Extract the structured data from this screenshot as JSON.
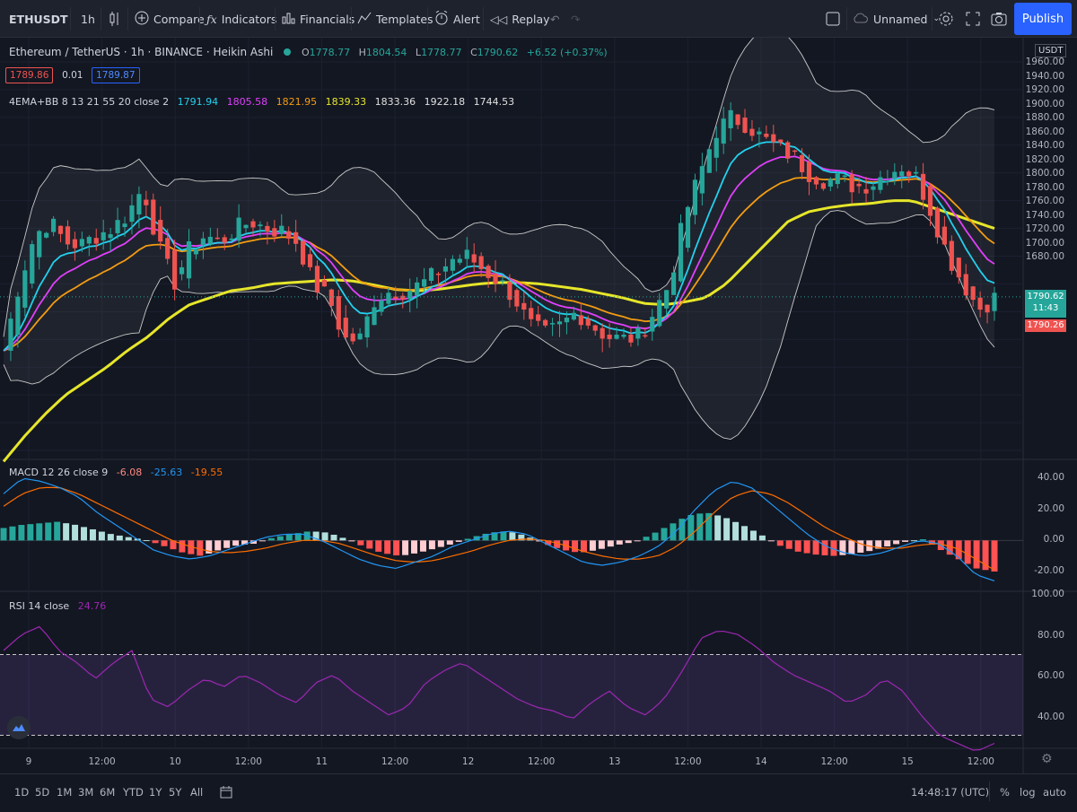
{
  "toolbar": {
    "symbol": "ETHUSDT",
    "interval": "1h",
    "compare": "Compare",
    "indicators": "Indicators",
    "financials": "Financials",
    "templates": "Templates",
    "alert": "Alert",
    "replay": "Replay",
    "layout_name": "Unnamed",
    "publish": "Publish"
  },
  "legend": {
    "title": "Ethereum / TetherUS · 1h · BINANCE · Heikin Ashi",
    "o_label": "O",
    "o": "1778.77",
    "h_label": "H",
    "h": "1804.54",
    "l_label": "L",
    "l": "1778.77",
    "c_label": "C",
    "c": "1790.62",
    "change": "+6.52 (+0.37%)",
    "sell_price": "1789.86",
    "spread": "0.01",
    "buy_price": "1789.87",
    "indicator_name": "4EMA+BB 8 13 21 55 20 close 2",
    "ema8": "1791.94",
    "ema13": "1805.58",
    "ema21": "1821.95",
    "ema55": "1839.33",
    "bb_mid": "1833.36",
    "bb_upper": "1922.18",
    "bb_lower": "1744.53"
  },
  "price_axis": {
    "currency": "USDT",
    "ticks": [
      "1960.00",
      "1940.00",
      "1920.00",
      "1900.00",
      "1880.00",
      "1860.00",
      "1840.00",
      "1820.00",
      "1800.00",
      "1780.00",
      "1760.00",
      "1740.00",
      "1720.00",
      "1700.00",
      "1680.00"
    ],
    "last_price": "1790.62",
    "countdown": "11:43",
    "bid_price": "1790.26"
  },
  "macd": {
    "name": "MACD 12 26 close 9",
    "hist": "-6.08",
    "macd": "-25.63",
    "signal": "-19.55",
    "ticks": [
      "40.00",
      "20.00",
      "0.00",
      "-20.00"
    ]
  },
  "rsi": {
    "name": "RSI 14 close",
    "value": "24.76",
    "ticks": [
      "100.00",
      "80.00",
      "60.00",
      "40.00"
    ]
  },
  "time_axis": [
    "9",
    "12:00",
    "10",
    "12:00",
    "11",
    "12:00",
    "12",
    "12:00",
    "13",
    "12:00",
    "14",
    "12:00",
    "15",
    "12:00"
  ],
  "ranges": [
    "1D",
    "5D",
    "1M",
    "3M",
    "6M",
    "YTD",
    "1Y",
    "5Y",
    "All"
  ],
  "bottom": {
    "clock": "14:48:17 (UTC)",
    "percent": "%",
    "log": "log",
    "auto": "auto"
  },
  "colors": {
    "up": "#26a69a",
    "down": "#ef5350",
    "ema8": "#22d1ee",
    "ema13": "#e040fb",
    "ema21": "#f39c12",
    "ema55": "#e6e62a",
    "bb": "#c9c9c9",
    "macd": "#2196f3",
    "signal": "#ff6d00",
    "rsi": "#9c27b0",
    "publish": "#2962ff"
  },
  "chart_data": {
    "type": "candlestick",
    "title": "Ethereum / TetherUS · 1h · BINANCE · Heikin Ashi",
    "ylim": [
      1672,
      1965
    ],
    "x": [
      "9",
      "12:00",
      "10",
      "12:00",
      "11",
      "12:00",
      "12",
      "12:00",
      "13",
      "12:00",
      "14",
      "12:00",
      "15",
      "12:00"
    ],
    "price_path": [
      1752,
      1800,
      1835,
      1845,
      1830,
      1828,
      1835,
      1840,
      1850,
      1870,
      1828,
      1800,
      1825,
      1835,
      1830,
      1840,
      1845,
      1840,
      1838,
      1830,
      1800,
      1790,
      1760,
      1760,
      1790,
      1795,
      1795,
      1800,
      1808,
      1818,
      1820,
      1810,
      1802,
      1790,
      1770,
      1764,
      1770,
      1780,
      1770,
      1762,
      1760,
      1762,
      1780,
      1800,
      1850,
      1880,
      1910,
      1920,
      1915,
      1905,
      1898,
      1892,
      1880,
      1875,
      1875,
      1870,
      1872,
      1880,
      1885,
      1876,
      1850,
      1820,
      1800,
      1782,
      1790
    ],
    "ema55": [
      1672,
      1690,
      1706,
      1720,
      1730,
      1740,
      1752,
      1762,
      1775,
      1785,
      1790,
      1795,
      1797,
      1800,
      1801,
      1802,
      1803,
      1802,
      1799,
      1796,
      1795,
      1796,
      1798,
      1800,
      1801,
      1801,
      1800,
      1798,
      1796,
      1793,
      1790,
      1786,
      1785,
      1787,
      1790,
      1800,
      1815,
      1830,
      1845,
      1852,
      1855,
      1857,
      1858,
      1860,
      1860,
      1855,
      1850,
      1845,
      1840
    ],
    "macd_hist": [
      8,
      10,
      11,
      12,
      10,
      7,
      4,
      2,
      0,
      -4,
      -8,
      -10,
      -6,
      -3,
      -2,
      2,
      4,
      6,
      5,
      1,
      -4,
      -8,
      -10,
      -8,
      -5,
      -2,
      2,
      5,
      6,
      3,
      -2,
      -6,
      -8,
      -6,
      -3,
      -1,
      4,
      10,
      16,
      18,
      15,
      10,
      4,
      -3,
      -7,
      -9,
      -10,
      -9,
      -7,
      -4,
      -1,
      1,
      -6,
      -12,
      -18,
      -20
    ],
    "macd_line": [
      30,
      40,
      38,
      34,
      28,
      18,
      10,
      2,
      -6,
      -10,
      -12,
      -10,
      -6,
      -2,
      2,
      4,
      4,
      0,
      -6,
      -12,
      -16,
      -18,
      -14,
      -10,
      -4,
      0,
      4,
      6,
      4,
      -2,
      -8,
      -14,
      -16,
      -14,
      -10,
      -4,
      6,
      20,
      32,
      38,
      34,
      24,
      14,
      4,
      -4,
      -8,
      -10,
      -8,
      -4,
      0,
      -2,
      -10,
      -22,
      -26
    ],
    "signal_line": [
      22,
      30,
      34,
      34,
      30,
      24,
      18,
      12,
      6,
      0,
      -4,
      -7,
      -8,
      -7,
      -5,
      -2,
      0,
      0,
      -2,
      -6,
      -10,
      -13,
      -14,
      -13,
      -10,
      -7,
      -3,
      0,
      1,
      0,
      -3,
      -7,
      -10,
      -12,
      -12,
      -10,
      -4,
      6,
      18,
      28,
      32,
      30,
      24,
      16,
      8,
      2,
      -3,
      -5,
      -5,
      -3,
      -2,
      -5,
      -12,
      -19
    ],
    "rsi_line": [
      72,
      80,
      84,
      72,
      66,
      58,
      66,
      72,
      48,
      44,
      52,
      58,
      54,
      60,
      56,
      50,
      46,
      56,
      60,
      52,
      46,
      40,
      44,
      56,
      62,
      66,
      60,
      54,
      48,
      44,
      42,
      38,
      46,
      52,
      44,
      40,
      48,
      62,
      78,
      82,
      80,
      74,
      66,
      60,
      56,
      52,
      46,
      50,
      58,
      52,
      40,
      30,
      26,
      22,
      26
    ]
  }
}
